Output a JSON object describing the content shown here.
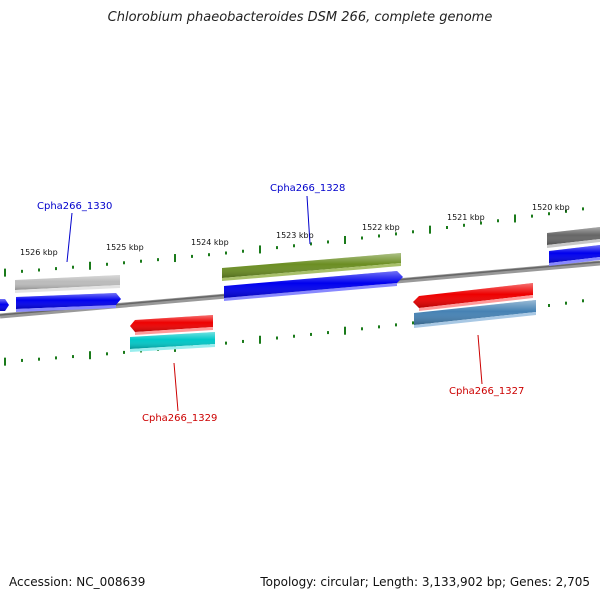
{
  "title": "Chlorobium phaeobacteroides DSM 266, complete genome",
  "accession": "Accession: NC_008639",
  "stats": "Topology: circular; Length: 3,133,902 bp; Genes: 2,705",
  "kbp_labels": [
    "1526 kbp",
    "1525 kbp",
    "1524 kbp",
    "1523 kbp",
    "1522 kbp",
    "1521 kbp",
    "1520 kbp"
  ],
  "gene_labels": {
    "cpha1330": "Cpha266_1330",
    "cpha1328": "Cpha266_1328",
    "cpha1329": "Cpha266_1329",
    "cpha1327": "Cpha266_1327"
  },
  "colors": {
    "label_forward": "#0000cc",
    "label_reverse": "#cc0000",
    "tick": "#1a7a1a",
    "backbone": "#888888",
    "blue": "#0000ee",
    "red": "#ee0000",
    "olive": "#6b8e23",
    "cyan": "#00c8c8",
    "steelblue": "#4682b4",
    "gray_light": "#bbbbbb",
    "gray_dark": "#666666"
  }
}
